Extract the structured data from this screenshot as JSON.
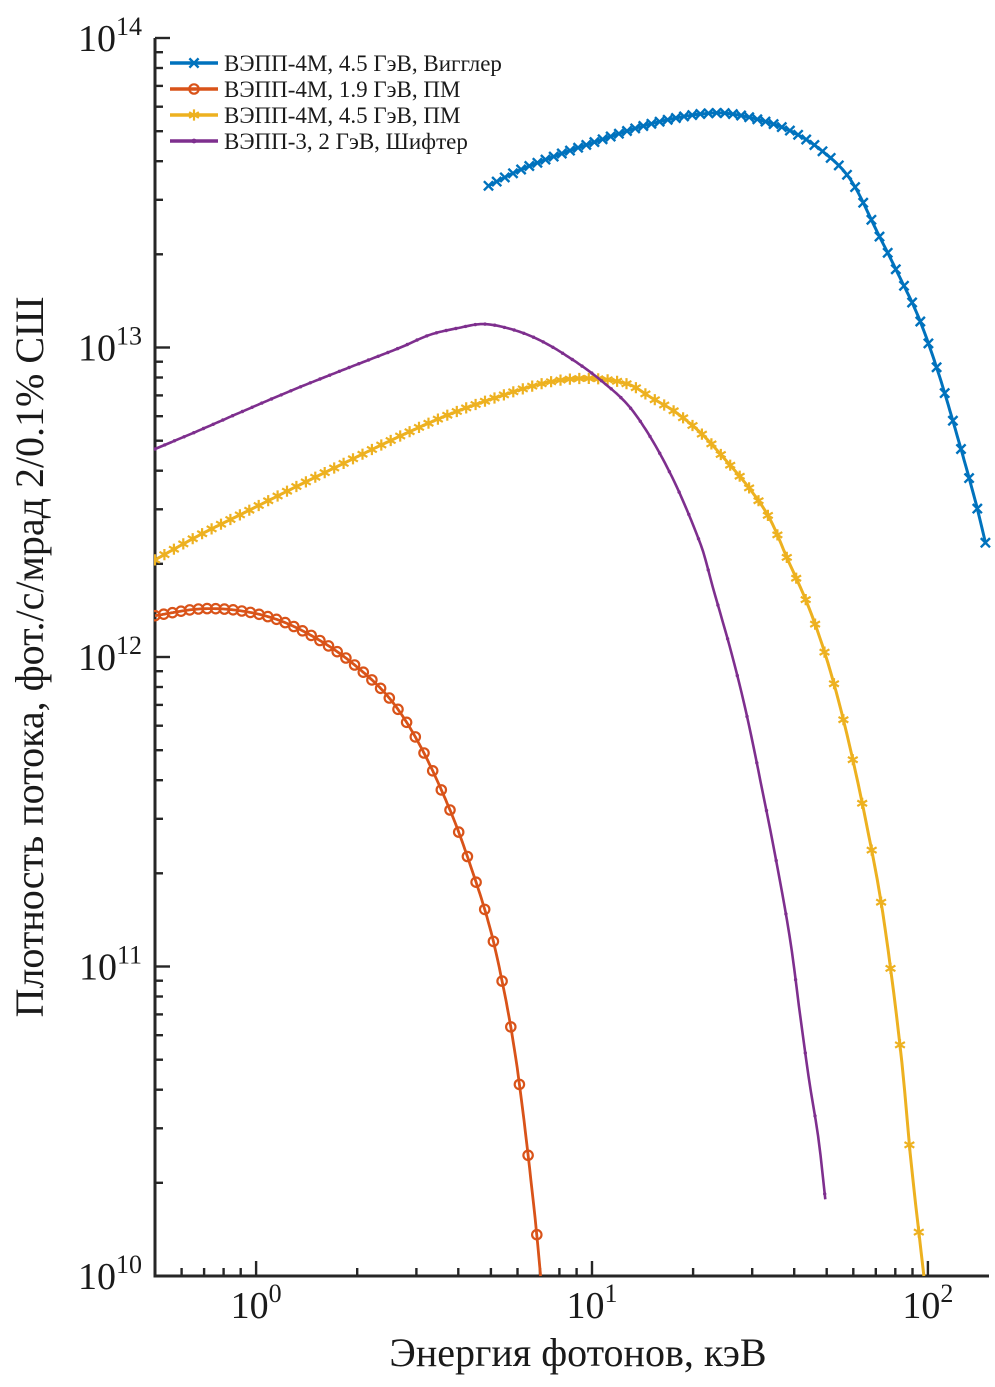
{
  "figure": {
    "background": "#ffffff",
    "text_color": "#1a1a1a",
    "axis_color": "#262626"
  },
  "chart_data": {
    "type": "line",
    "title": "",
    "xlabel": "Энергия фотонов, кэВ",
    "ylabel": "Плотность потока, фот./с/мрад 2/0.1% СШ",
    "x_scale": "log",
    "y_scale": "log",
    "xlim": [
      0.5,
      150
    ],
    "ylim": [
      10000000000.0,
      100000000000000.0
    ],
    "x_ticks_exponents": [
      0,
      1,
      2
    ],
    "y_ticks_exponents": [
      10,
      11,
      12,
      13,
      14
    ],
    "grid": false,
    "legend_position": "top-left-inside",
    "series": [
      {
        "name": "ВЭПП-4М, 4.5 ГэВ, Вигглер",
        "color": "#0072BD",
        "marker": "x",
        "line_width": 3,
        "n_markers": 62,
        "marker_end_E": 148.4,
        "E_keV": [
          4.92,
          6.12,
          8.07,
          10.6,
          13.9,
          18.3,
          22.6,
          25.9,
          31.7,
          39.0,
          48.0,
          58.9,
          71.4,
          81.3,
          93.9,
          107.4,
          121.7,
          138.7,
          148.4
        ],
        "F": [
          33300000000000.0,
          37500000000000.0,
          42200000000000.0,
          46800000000000.0,
          51600000000000.0,
          55500000000000.0,
          57200000000000.0,
          56900000000000.0,
          54300000000000.0,
          50100000000000.0,
          43500000000000.0,
          34800000000000.0,
          23100000000000.0,
          17400000000000.0,
          12500000000000.0,
          8300000000000.0,
          5280000000000.0,
          3170000000000.0,
          2340000000000.0
        ]
      },
      {
        "name": "ВЭПП-4М, 1.9 ГэВ, ПМ",
        "color": "#D95319",
        "marker": "o",
        "line_width": 2.8,
        "n_markers": 45,
        "marker_end_E": 6.85,
        "E_keV": [
          0.5,
          0.68,
          0.9,
          1.18,
          1.55,
          1.97,
          2.51,
          3.07,
          3.78,
          4.34,
          4.99,
          5.54,
          5.94,
          6.27,
          6.58,
          6.85,
          7.03
        ],
        "F": [
          1360000000000.0,
          1430000000000.0,
          1410000000000.0,
          1310000000000.0,
          1130000000000.0,
          940000000000.0,
          730000000000.0,
          520000000000.0,
          320000000000.0,
          213000000000.0,
          131000000000.0,
          78000000000.0,
          50000000000.0,
          32000000000.0,
          20400000000.0,
          13600000000.0,
          10000000000.0
        ]
      },
      {
        "name": "ВЭПП-4М, 4.5 ГэВ, ПМ",
        "color": "#EDB120",
        "marker": "*",
        "line_width": 3,
        "n_markers": 82,
        "marker_end_E": 94.0,
        "E_keV": [
          0.5,
          0.68,
          0.96,
          1.35,
          1.91,
          2.69,
          3.79,
          5.34,
          7.02,
          8.63,
          10.6,
          13.0,
          14.9,
          17.7,
          21.1,
          25.0,
          29.7,
          34.0,
          38.3,
          43.3,
          48.0,
          53.2,
          58.9,
          65.3,
          72.4,
          78.6,
          84.2,
          89.0,
          97.3
        ],
        "F": [
          2060000000000.0,
          2480000000000.0,
          2990000000000.0,
          3600000000000.0,
          4330000000000.0,
          5180000000000.0,
          6100000000000.0,
          6970000000000.0,
          7620000000000.0,
          7910000000000.0,
          7910000000000.0,
          7570000000000.0,
          6920000000000.0,
          6190000000000.0,
          5290000000000.0,
          4330000000000.0,
          3460000000000.0,
          2770000000000.0,
          2060000000000.0,
          1530000000000.0,
          1130000000000.0,
          780000000000.0,
          500000000000.0,
          297000000000.0,
          164000000000.0,
          87000000000.0,
          46000000000.0,
          23700000000.0,
          10000000000.0
        ]
      },
      {
        "name": "ВЭПП-3, 2 ГэВ, Шифтер",
        "color": "#7E2F8E",
        "marker": ".",
        "line_width": 2.6,
        "n_markers": 70,
        "marker_end_E": 49.3,
        "E_keV": [
          0.5,
          0.68,
          0.96,
          1.35,
          1.91,
          2.69,
          3.3,
          4.06,
          4.66,
          5.34,
          6.56,
          8.07,
          10.6,
          13.3,
          16.9,
          21.1,
          23.0,
          25.9,
          28.7,
          31.7,
          35.1,
          38.9,
          41.5,
          44.3,
          47.3,
          49.5
        ],
        "F": [
          4700000000000.0,
          5410000000000.0,
          6370000000000.0,
          7450000000000.0,
          8650000000000.0,
          10000000000000.0,
          11000000000000.0,
          11600000000000.0,
          11900000000000.0,
          11700000000000.0,
          10900000000000.0,
          9670000000000.0,
          7850000000000.0,
          6190000000000.0,
          4020000000000.0,
          2300000000000.0,
          1650000000000.0,
          1050000000000.0,
          670000000000.0,
          400000000000.0,
          229000000000.0,
          122000000000.0,
          72000000000.0,
          43000000000.0,
          27500000000.0,
          17700000000.0
        ]
      }
    ]
  }
}
